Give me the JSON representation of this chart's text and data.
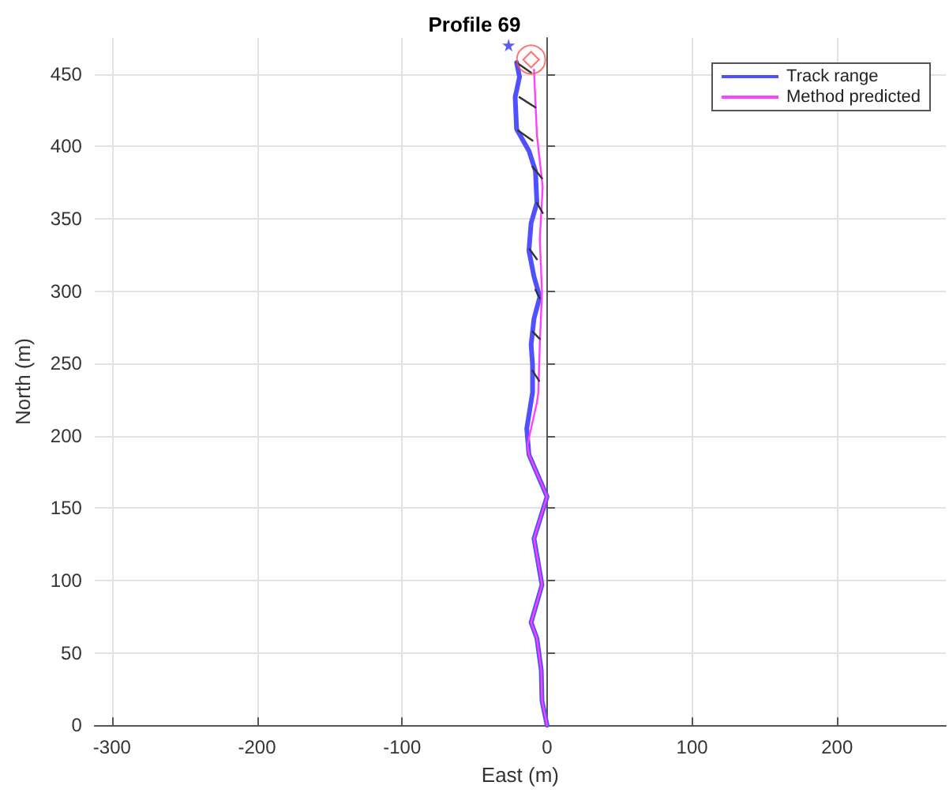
{
  "chart_data": {
    "type": "line",
    "title": "Profile 69",
    "xlabel": "East (m)",
    "ylabel": "North (m)",
    "xlim": [
      -312,
      275
    ],
    "ylim": [
      0,
      475
    ],
    "xticks": [
      -300,
      -200,
      -100,
      0,
      100,
      200
    ],
    "yticks": [
      0,
      50,
      100,
      150,
      200,
      250,
      300,
      350,
      400,
      450
    ],
    "grid": true,
    "legend": "top right",
    "marker": "none",
    "line_style": "solid",
    "series": [
      {
        "name": "Track range",
        "color": "#5050ff",
        "x": [
          -21,
          -19,
          -22,
          -21,
          -12.5,
          -8,
          -7,
          -11,
          -12.5,
          -9,
          -5,
          -9,
          -11,
          -10,
          -10,
          -14,
          -12.5,
          0,
          -9,
          -3.5,
          -11,
          -7,
          -4,
          -3.5,
          0
        ],
        "values": [
          458,
          448,
          434,
          412,
          397,
          383,
          361,
          347,
          328,
          310,
          296,
          281,
          263,
          249,
          230,
          205,
          187,
          158,
          129,
          97,
          71,
          60,
          38,
          17,
          0
        ]
      },
      {
        "name": "Method predicted",
        "color": "#ff40ff",
        "x": [
          -9,
          -7,
          -3,
          -5,
          -3.5,
          -5,
          -6,
          -7,
          -13.5,
          -12.5,
          0,
          -9,
          -3.5,
          -11,
          -7,
          -4,
          -3.5,
          0
        ],
        "values": [
          453,
          408,
          372,
          336,
          299,
          263,
          230,
          223,
          194,
          187,
          158,
          129,
          97,
          71,
          60,
          38,
          17,
          0
        ]
      },
      {
        "color": "#333333",
        "x": [
          -21,
          -11,
          null,
          -19,
          -8,
          null,
          -20,
          -10,
          null,
          -10,
          -3.5,
          null,
          -7,
          -3,
          null,
          -12,
          -7,
          null,
          -8,
          -5,
          null,
          -10,
          -5,
          null,
          -10,
          -5.5
        ],
        "values": [
          458,
          451,
          null,
          434,
          427,
          null,
          411,
          404,
          null,
          386,
          378,
          null,
          361,
          354,
          null,
          329,
          322,
          null,
          301,
          295,
          null,
          272,
          267,
          null,
          245,
          238
        ]
      },
      {
        "type": "scatter",
        "marker": "star",
        "color": "#3030ff",
        "x": [
          -26.5
        ],
        "values": [
          470
        ]
      },
      {
        "type": "scatter",
        "marker": "circle",
        "color": "#ff5050",
        "x": [
          -11
        ],
        "values": [
          460
        ]
      },
      {
        "type": "scatter",
        "marker": "diamond",
        "color": "#ff5050",
        "x": [
          -11
        ],
        "values": [
          460
        ]
      }
    ]
  }
}
